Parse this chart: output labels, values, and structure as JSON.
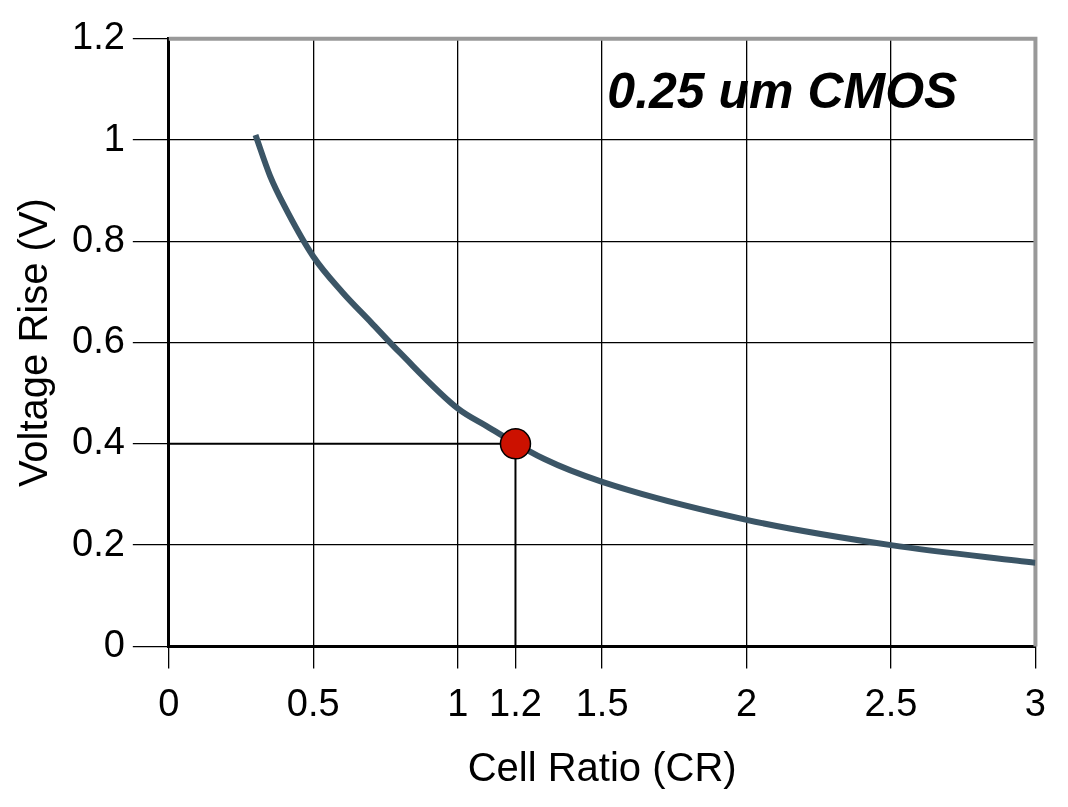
{
  "chart_data": {
    "type": "line",
    "title": "0.25 um CMOS",
    "xlabel": "Cell Ratio (CR)",
    "ylabel": "Voltage Rise (V)",
    "xlim": [
      0,
      3
    ],
    "ylim": [
      0,
      1.2
    ],
    "xticks": [
      0,
      0.5,
      1,
      1.2,
      1.5,
      2,
      2.5,
      3
    ],
    "yticks": [
      0,
      0.2,
      0.4,
      0.6,
      0.8,
      1,
      1.2
    ],
    "grid": true,
    "legend": false,
    "ref_lines": [
      {
        "axis": "x",
        "value": 1.2,
        "color": "#000000"
      },
      {
        "axis": "y",
        "value": 0.4,
        "color": "#000000"
      }
    ],
    "series": [
      {
        "color": "#3b5566",
        "marker": "none",
        "x": [
          0.3,
          0.35,
          0.4,
          0.5,
          0.6,
          0.7,
          0.8,
          1.0,
          1.1,
          1.3,
          1.5,
          2.0,
          2.5,
          3.0
        ],
        "values": [
          1.01,
          0.93,
          0.87,
          0.77,
          0.7,
          0.64,
          0.58,
          0.47,
          0.435,
          0.37,
          0.325,
          0.25,
          0.2,
          0.165
        ]
      },
      {
        "type": "scatter",
        "color": "#cc1100",
        "marker": "circle",
        "x": [
          1.2
        ],
        "values": [
          0.4
        ]
      }
    ]
  }
}
